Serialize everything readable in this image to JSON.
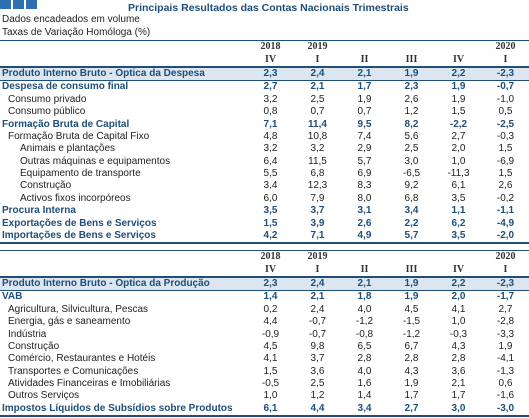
{
  "header": {
    "title": "Principais Resultados das Contas Nacionais Trimestrais",
    "subtitle": [
      "Dados encadeados em volume",
      "Taxas de Variação Homóloga (%)"
    ]
  },
  "tables": [
    {
      "years": [
        "2018",
        "2019",
        null,
        null,
        null,
        "2020"
      ],
      "quarters": [
        "IV",
        "I",
        "II",
        "III",
        "IV",
        "I"
      ],
      "rows": [
        {
          "label": "Produto Interno Bruto - Óptica da Despesa",
          "values": [
            "2,3",
            "2,4",
            "2,1",
            "1,9",
            "2,2",
            "-2,3"
          ]
        },
        {
          "label": "Despesa de consumo final",
          "values": [
            "2,7",
            "2,1",
            "1,7",
            "2,3",
            "1,9",
            "-0,7"
          ]
        },
        {
          "label": "Consumo privado",
          "values": [
            "3,2",
            "2,5",
            "1,9",
            "2,6",
            "1,9",
            "-1,0"
          ]
        },
        {
          "label": "Consumo público",
          "values": [
            "0,8",
            "0,7",
            "0,7",
            "1,2",
            "1,5",
            "0,5"
          ]
        },
        {
          "label": "Formação Bruta de Capital",
          "values": [
            "7,1",
            "11,4",
            "9,5",
            "8,2",
            "-2,2",
            "-2,5"
          ]
        },
        {
          "label": "Formação Bruta de Capital Fixo",
          "values": [
            "4,8",
            "10,8",
            "7,4",
            "5,6",
            "2,7",
            "-0,3"
          ]
        },
        {
          "label": "Animais e plantações",
          "values": [
            "3,2",
            "3,2",
            "2,9",
            "2,5",
            "2,0",
            "1,5"
          ]
        },
        {
          "label": "Outras máquinas e equipamentos",
          "values": [
            "6,4",
            "11,5",
            "5,7",
            "3,0",
            "1,0",
            "-6,9"
          ]
        },
        {
          "label": "Equipamento de transporte",
          "values": [
            "5,5",
            "6,8",
            "6,9",
            "-6,5",
            "-11,3",
            "1,5"
          ]
        },
        {
          "label": "Construção",
          "values": [
            "3,4",
            "12,3",
            "8,3",
            "9,2",
            "6,1",
            "2,6"
          ]
        },
        {
          "label": "Activos fixos incorpóreos",
          "values": [
            "6,0",
            "7,9",
            "8,0",
            "6,8",
            "3,5",
            "-0,2"
          ]
        },
        {
          "label": "Procura Interna",
          "values": [
            "3,5",
            "3,7",
            "3,1",
            "3,4",
            "1,1",
            "-1,1"
          ]
        },
        {
          "label": "Exportações de Bens e Serviços",
          "values": [
            "1,5",
            "3,9",
            "2,6",
            "2,2",
            "6,2",
            "-4,9"
          ]
        },
        {
          "label": "Importações de Bens e Serviços",
          "values": [
            "4,2",
            "7,1",
            "4,9",
            "5,7",
            "3,5",
            "-2,0"
          ]
        }
      ]
    },
    {
      "years": [
        "2018",
        "2019",
        null,
        null,
        null,
        "2020"
      ],
      "quarters": [
        "IV",
        "I",
        "II",
        "III",
        "IV",
        "I"
      ],
      "rows": [
        {
          "label": "Produto Interno Bruto - Óptica da Produção",
          "values": [
            "2,3",
            "2,4",
            "2,1",
            "1,9",
            "2,2",
            "-2,3"
          ]
        },
        {
          "label": "VAB",
          "values": [
            "1,4",
            "2,1",
            "1,8",
            "1,9",
            "2,0",
            "-1,7"
          ]
        },
        {
          "label": "Agricultura, Silvicultura, Pescas",
          "values": [
            "0,2",
            "2,4",
            "4,0",
            "4,5",
            "4,1",
            "2,7"
          ]
        },
        {
          "label": "Energia, gás e saneamento",
          "values": [
            "4,4",
            "-0,7",
            "-1,2",
            "-1,5",
            "1,0",
            "-2,8"
          ]
        },
        {
          "label": "Indústria",
          "values": [
            "-0,9",
            "-0,7",
            "-0,8",
            "-1,2",
            "-0,3",
            "-3,3"
          ]
        },
        {
          "label": "Construção",
          "values": [
            "4,5",
            "9,8",
            "6,5",
            "6,7",
            "4,3",
            "1,9"
          ]
        },
        {
          "label": "Comércio, Restaurantes e Hotéis",
          "values": [
            "4,1",
            "3,7",
            "2,8",
            "2,8",
            "2,8",
            "-4,1"
          ]
        },
        {
          "label": "Transportes e Comunicações",
          "values": [
            "1,5",
            "3,6",
            "4,0",
            "4,3",
            "3,6",
            "-1,3"
          ]
        },
        {
          "label": "Atividades Financeiras e Imobiliárias",
          "values": [
            "-0,5",
            "2,5",
            "1,6",
            "1,9",
            "2,1",
            "0,6"
          ]
        },
        {
          "label": "Outros Serviços",
          "values": [
            "1,0",
            "1,2",
            "1,4",
            "1,7",
            "1,7",
            "-1,6"
          ]
        },
        {
          "label": "Impostos Líquidos de Subsídios sobre Produtos",
          "values": [
            "6,1",
            "4,4",
            "3,4",
            "2,7",
            "3,0",
            "-3,0"
          ]
        }
      ]
    }
  ]
}
